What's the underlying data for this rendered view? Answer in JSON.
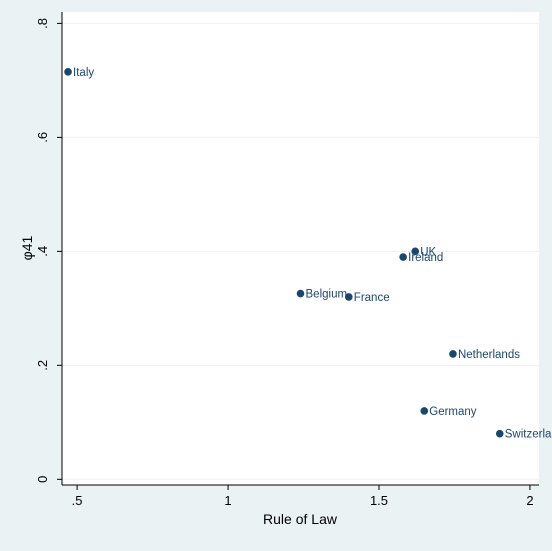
{
  "chart_data": {
    "type": "scatter",
    "title": "",
    "xlabel": "Rule of Law",
    "ylabel": "φ41",
    "xlim": [
      0.45,
      2.03
    ],
    "ylim": [
      -0.01,
      0.82
    ],
    "x_ticks": [
      0.5,
      1,
      1.5,
      2
    ],
    "x_tick_labels": [
      ".5",
      "1",
      "1.5",
      "2"
    ],
    "y_ticks": [
      0,
      0.2,
      0.4,
      0.6,
      0.8
    ],
    "y_tick_labels": [
      "0",
      ".2",
      ".4",
      ".6",
      ".8"
    ],
    "grid": "horizontal",
    "marker_color": "#1a476f",
    "label_color": "#1a476f",
    "points": [
      {
        "label": "Italy",
        "x": 0.47,
        "y": 0.715
      },
      {
        "label": "UK",
        "x": 1.62,
        "y": 0.4
      },
      {
        "label": "Ireland",
        "x": 1.58,
        "y": 0.39
      },
      {
        "label": "Belgium",
        "x": 1.24,
        "y": 0.326
      },
      {
        "label": "France",
        "x": 1.4,
        "y": 0.32
      },
      {
        "label": "Netherlands",
        "x": 1.745,
        "y": 0.22
      },
      {
        "label": "Germany",
        "x": 1.65,
        "y": 0.12
      },
      {
        "label": "Switzerland",
        "x": 1.9,
        "y": 0.08
      }
    ]
  }
}
